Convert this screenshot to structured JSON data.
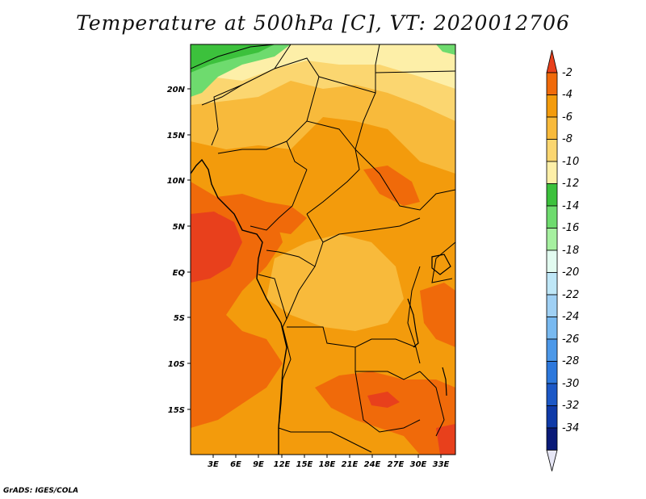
{
  "title": "Temperature at 500hPa [C], VT: 2020012706",
  "credit": "GrADS: IGES/COLA",
  "map": {
    "lat_ticks": [
      "20N",
      "15N",
      "10N",
      "5N",
      "EQ",
      "5S",
      "10S",
      "15S"
    ],
    "lon_ticks": [
      "3E",
      "6E",
      "9E",
      "12E",
      "15E",
      "18E",
      "21E",
      "24E",
      "27E",
      "30E",
      "33E"
    ]
  },
  "legend": {
    "levels": [
      "-2",
      "-4",
      "-6",
      "-8",
      "-10",
      "-12",
      "-14",
      "-16",
      "-18",
      "-20",
      "-22",
      "-24",
      "-26",
      "-28",
      "-30",
      "-32",
      "-34"
    ],
    "colors": [
      "#e8401c",
      "#f06a0a",
      "#f39b0c",
      "#f8ba3b",
      "#fbd670",
      "#fdefa8",
      "#3cc13c",
      "#6edb6e",
      "#a6f0a0",
      "#e2fbf0",
      "#bfe7f7",
      "#9fd0f4",
      "#78b9f0",
      "#4c98e8",
      "#2d78dc",
      "#1c58c6",
      "#0f3aa8",
      "#0a1a78",
      "#e6e6f5"
    ]
  },
  "field_colors": {
    "warmest": "#e8401c",
    "warm": "#f06a0a",
    "mid": "#f39b0c",
    "cool": "#f8ba3b",
    "cooler": "#fbd670",
    "coolest": "#fdefa8",
    "green": "#3cc13c",
    "lightgreen": "#6edb6e"
  }
}
